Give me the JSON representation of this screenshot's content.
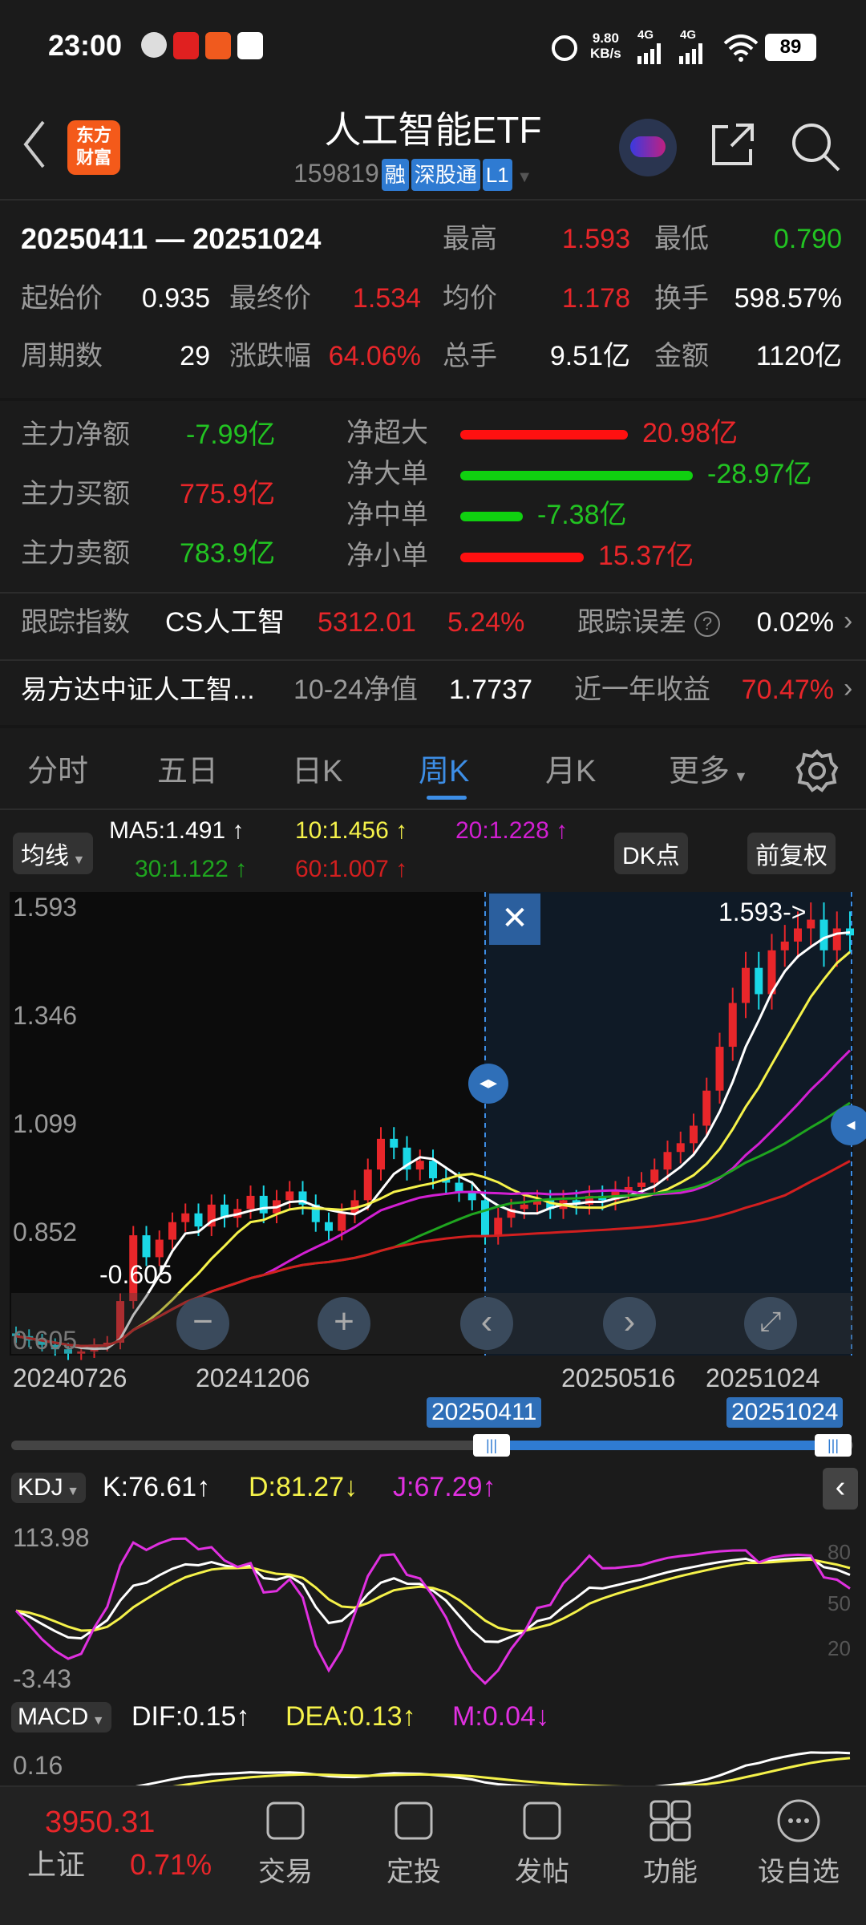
{
  "status": {
    "time": "23:00",
    "speed": "9.80",
    "speed_unit": "KB/s",
    "net1": "4G",
    "net2": "4G",
    "battery": "89"
  },
  "header": {
    "title": "人工智能ETF",
    "code": "159819",
    "tags": [
      "融",
      "深股通",
      "L1"
    ],
    "logo_line1": "东方",
    "logo_line2": "财富"
  },
  "summary": {
    "range": "20250411 — 20251024",
    "items": [
      {
        "label": "最高",
        "value": "1.593",
        "color": "#e8262a"
      },
      {
        "label": "最低",
        "value": "0.790",
        "color": "#22c322"
      },
      {
        "label": "起始价",
        "value": "0.935",
        "color": "#ffffff"
      },
      {
        "label": "最终价",
        "value": "1.534",
        "color": "#e8262a"
      },
      {
        "label": "均价",
        "value": "1.178",
        "color": "#e8262a"
      },
      {
        "label": "换手",
        "value": "598.57%",
        "color": "#ffffff"
      },
      {
        "label": "周期数",
        "value": "29",
        "color": "#ffffff"
      },
      {
        "label": "涨跌幅",
        "value": "64.06%",
        "color": "#e8262a"
      },
      {
        "label": "总手",
        "value": "9.51亿",
        "color": "#ffffff"
      },
      {
        "label": "金额",
        "value": "1120亿",
        "color": "#ffffff"
      }
    ]
  },
  "flow": {
    "left": [
      {
        "label": "主力净额",
        "value": "-7.99亿",
        "color": "#22c322"
      },
      {
        "label": "主力买额",
        "value": "775.9亿",
        "color": "#e8262a"
      },
      {
        "label": "主力卖额",
        "value": "783.9亿",
        "color": "#22c322"
      }
    ],
    "right": [
      {
        "label": "净超大",
        "value": "20.98亿",
        "color": "#e8262a",
        "fraction": 0.72
      },
      {
        "label": "净大单",
        "value": "-28.97亿",
        "color": "#22c322",
        "fraction": 1.0
      },
      {
        "label": "净中单",
        "value": "-7.38亿",
        "color": "#22c322",
        "fraction": 0.27
      },
      {
        "label": "净小单",
        "value": "15.37亿",
        "color": "#e8262a",
        "fraction": 0.53
      }
    ]
  },
  "tracking": {
    "label": "跟踪指数",
    "index": "CS人工智",
    "points": "5312.01",
    "pct": "5.24%",
    "err_label": "跟踪误差",
    "err": "0.02%"
  },
  "fund": {
    "name": "易方达中证人工智...",
    "nav_label": "10-24净值",
    "nav": "1.7737",
    "ret_label": "近一年收益",
    "ret": "70.47%"
  },
  "tabs": [
    {
      "label": "分时"
    },
    {
      "label": "五日"
    },
    {
      "label": "日K"
    },
    {
      "label": "周K",
      "active": true
    },
    {
      "label": "月K"
    },
    {
      "label": "更多"
    }
  ],
  "ma": {
    "button": "均线",
    "ma5": "MA5:1.491",
    "ma10": "10:1.456",
    "ma20": "20:1.228",
    "ma30": "30:1.122",
    "ma60": "60:1.007",
    "dk": "DK点",
    "fq": "前复权"
  },
  "chart": {
    "y_labels": [
      "1.593",
      "1.346",
      "1.099",
      "0.852",
      "0.605"
    ],
    "high_note": "1.593->",
    "low_note": "0.605",
    "x_labels": [
      "20240726",
      "20241206",
      "20250516",
      "20251024"
    ],
    "sel_start": "20250411",
    "sel_end": "20251024",
    "closes": [
      0.62,
      0.61,
      0.6,
      0.59,
      0.58,
      0.585,
      0.6,
      0.605,
      0.7,
      0.85,
      0.8,
      0.84,
      0.88,
      0.9,
      0.87,
      0.92,
      0.89,
      0.91,
      0.94,
      0.9,
      0.93,
      0.95,
      0.92,
      0.88,
      0.86,
      0.9,
      0.93,
      1.0,
      1.07,
      1.05,
      1.0,
      1.02,
      0.98,
      0.97,
      0.95,
      0.93,
      0.85,
      0.89,
      0.91,
      0.92,
      0.93,
      0.91,
      0.93,
      0.92,
      0.94,
      0.93,
      0.95,
      0.96,
      0.97,
      1.0,
      1.04,
      1.06,
      1.1,
      1.18,
      1.28,
      1.38,
      1.46,
      1.4,
      1.5,
      1.52,
      1.55,
      1.57,
      1.5,
      1.55,
      1.534
    ],
    "colors": {
      "up": "#e8262a",
      "down": "#1ad8e6",
      "ma5": "#ffffff",
      "ma10": "#f5f24a",
      "ma20": "#d21fd2",
      "ma30": "#1fa51f",
      "ma60": "#d21f1f"
    }
  },
  "kdj": {
    "button": "KDJ",
    "k": "K:76.61",
    "d": "D:81.27",
    "j": "J:67.29",
    "top": "113.98",
    "bottom": "-3.43",
    "ref": [
      "80",
      "50",
      "20"
    ]
  },
  "macd": {
    "button": "MACD",
    "dif": "DIF:0.15",
    "dea": "DEA:0.13",
    "m": "M:0.04",
    "top": "0.16"
  },
  "bottom": {
    "index_name": "上证",
    "index_value": "3950.31",
    "index_pct": "0.71%",
    "items": [
      "交易",
      "定投",
      "发帖",
      "功能",
      "设自选"
    ]
  }
}
